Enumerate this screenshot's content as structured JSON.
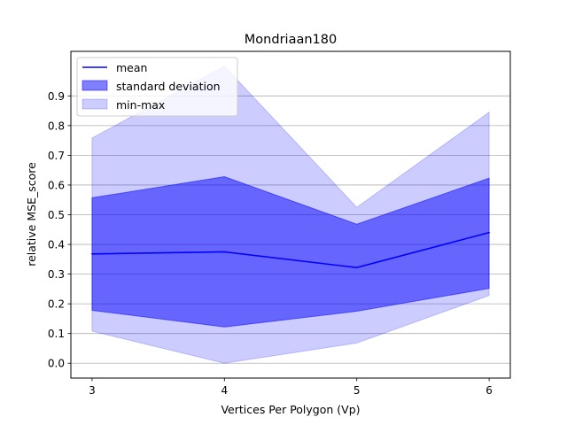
{
  "chart_data": {
    "type": "area",
    "title": "Mondriaan180",
    "xlabel": "Vertices Per Polygon (Vp)",
    "ylabel": "relative MSE_score",
    "x": [
      3,
      4,
      5,
      6
    ],
    "xlim": [
      2.84,
      6.16
    ],
    "ylim": [
      -0.05,
      1.05
    ],
    "xticks": [
      3,
      4,
      5,
      6
    ],
    "yticks": [
      0.0,
      0.1,
      0.2,
      0.3,
      0.4,
      0.5,
      0.6,
      0.7,
      0.8,
      0.9
    ],
    "grid": "horizontal",
    "legend_position": "top-left",
    "series": [
      {
        "name": "mean",
        "kind": "line",
        "color": "#0000ff",
        "values": [
          0.368,
          0.375,
          0.322,
          0.44
        ]
      },
      {
        "name": "standard deviation",
        "kind": "band",
        "color": "#0000ff",
        "opacity": 0.5,
        "lower": [
          0.178,
          0.122,
          0.175,
          0.252
        ],
        "upper": [
          0.557,
          0.628,
          0.468,
          0.623
        ]
      },
      {
        "name": "min-max",
        "kind": "band",
        "color": "#0000ff",
        "opacity": 0.2,
        "lower": [
          0.108,
          0.0,
          0.068,
          0.228
        ],
        "upper": [
          0.758,
          1.0,
          0.525,
          0.845
        ]
      }
    ]
  }
}
